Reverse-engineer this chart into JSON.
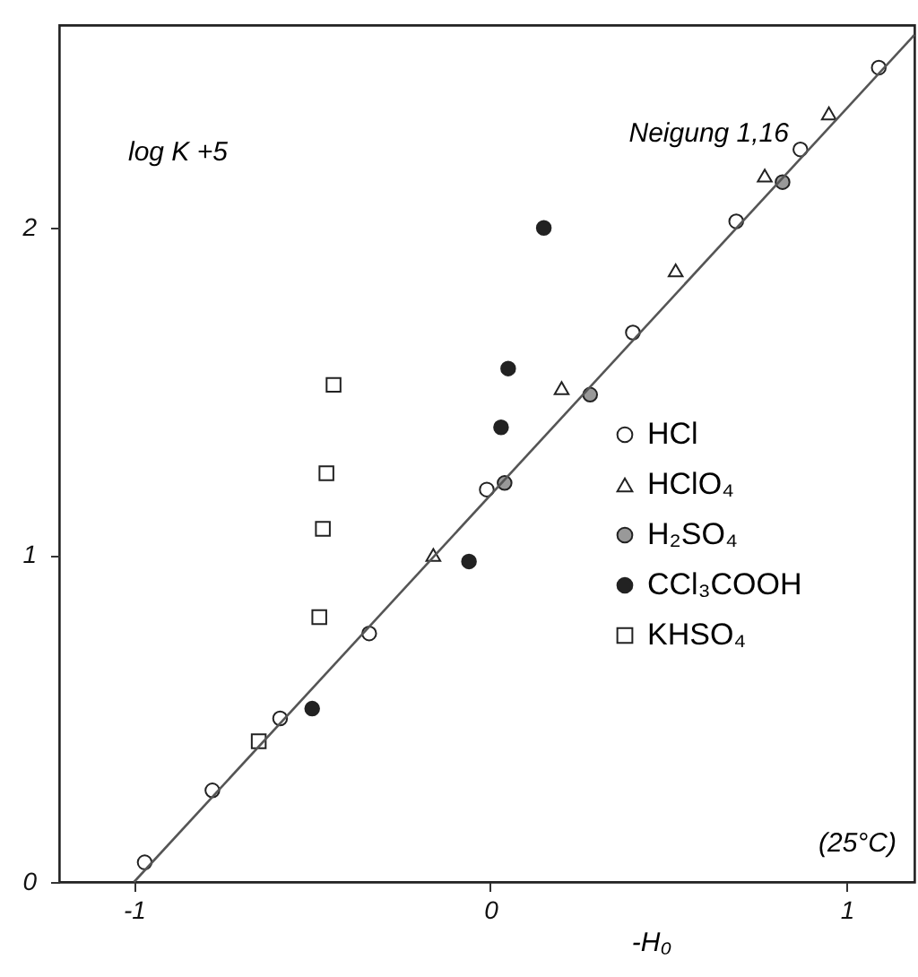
{
  "chart_data": {
    "type": "scatter",
    "xlabel": "-H₀",
    "ylabel": "log K +5",
    "xlim": [
      -1.21,
      1.19
    ],
    "ylim": [
      0,
      2.62
    ],
    "xticks": [
      -1,
      0,
      1
    ],
    "yticks": [
      0,
      1,
      2
    ],
    "grid": false,
    "legend": "right",
    "annotations": [
      "Neigung 1,16",
      "(25°C)"
    ],
    "series": [
      {
        "name": "HCl",
        "color": "#ffffff",
        "marker": "circle",
        "x": [
          -0.97,
          -0.78,
          -0.59,
          -0.34,
          -0.01,
          0.4,
          0.69,
          0.87,
          1.09
        ],
        "values": [
          0.06,
          0.28,
          0.5,
          0.76,
          1.2,
          1.68,
          2.02,
          2.24,
          2.49
        ]
      },
      {
        "name": "HClO₄",
        "color": "#ffffff",
        "marker": "triangle",
        "x": [
          -0.16,
          0.2,
          0.52,
          0.77,
          0.95
        ],
        "values": [
          1.0,
          1.51,
          1.87,
          2.16,
          2.35
        ]
      },
      {
        "name": "H₂SO₄",
        "color": "#999999",
        "marker": "circle",
        "x": [
          0.04,
          0.28,
          0.82
        ],
        "values": [
          1.22,
          1.49,
          2.14
        ]
      },
      {
        "name": "CCl₃COOH",
        "color": "#222222",
        "marker": "circle",
        "x": [
          -0.5,
          -0.06,
          0.03,
          0.05,
          0.15
        ],
        "values": [
          0.53,
          0.98,
          1.39,
          1.57,
          2.0
        ]
      },
      {
        "name": "KHSO₄",
        "color": "#ffffff",
        "marker": "square",
        "x": [
          -0.65,
          -0.48,
          -0.47,
          -0.46,
          -0.44
        ],
        "values": [
          0.43,
          0.81,
          1.08,
          1.25,
          1.52
        ]
      },
      {
        "type": "line",
        "color": "#555555",
        "x": [
          -1,
          1.19
        ],
        "values": [
          0,
          2.59
        ]
      }
    ]
  }
}
